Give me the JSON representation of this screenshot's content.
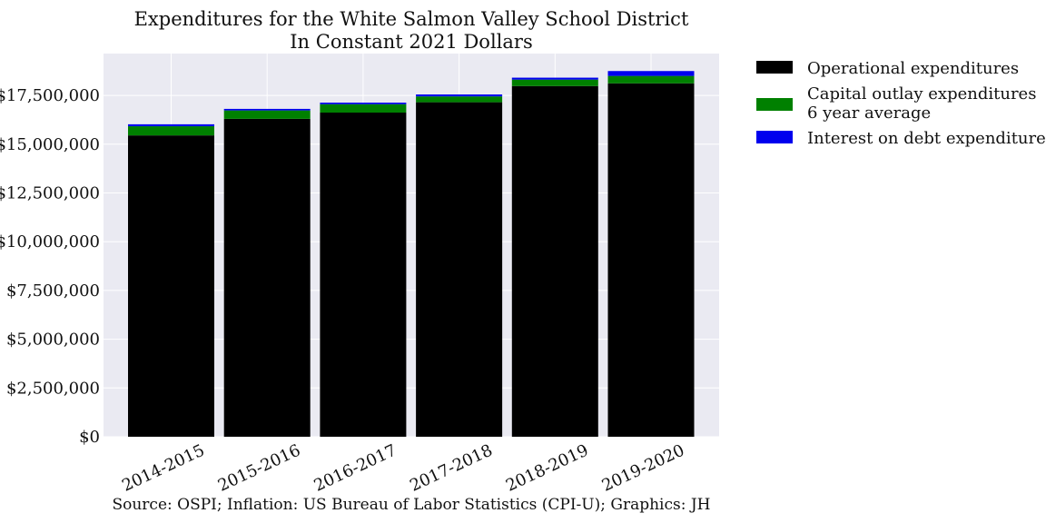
{
  "chart_data": {
    "type": "bar",
    "stacked": true,
    "title": "Expenditures for the White Salmon Valley School District",
    "subtitle": "In Constant 2021 Dollars",
    "xlabel": "",
    "ylabel": "",
    "caption": "Source: OSPI; Inflation: US Bureau of Labor Statistics (CPI-U); Graphics: JH",
    "categories": [
      "2014-2015",
      "2015-2016",
      "2016-2017",
      "2017-2018",
      "2018-2019",
      "2019-2020"
    ],
    "yticks": [
      "$0",
      "$2,500,000",
      "$5,000,000",
      "$7,500,000",
      "$10,000,000",
      "$12,500,000",
      "$15,000,000",
      "$17,500,000"
    ],
    "ylim": [
      0,
      19500000
    ],
    "grid": true,
    "legend_position": "outside-top-right",
    "series": [
      {
        "name": "Operational expenditures",
        "color": "#000000",
        "values": [
          15450000,
          16300000,
          16620000,
          17150000,
          17980000,
          18120000
        ]
      },
      {
        "name": "Capital outlay expenditures",
        "name2": "6 year average",
        "color": "#008000",
        "values": [
          470000,
          430000,
          430000,
          300000,
          330000,
          380000
        ]
      },
      {
        "name": "Interest on debt expenditures",
        "color": "#0000ee",
        "values": [
          100000,
          80000,
          80000,
          100000,
          100000,
          250000
        ]
      }
    ]
  }
}
